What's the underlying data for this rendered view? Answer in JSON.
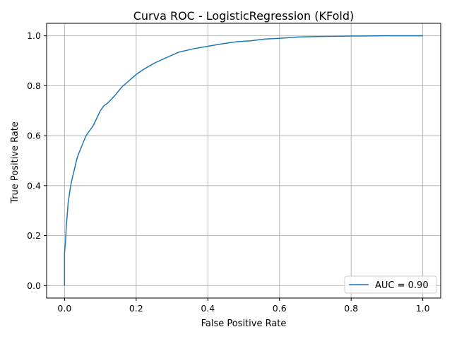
{
  "chart_data": {
    "type": "line",
    "title": "Curva ROC - LogisticRegression (KFold)",
    "xlabel": "False Positive Rate",
    "ylabel": "True Positive Rate",
    "xlim": [
      -0.05,
      1.05
    ],
    "ylim": [
      -0.05,
      1.05
    ],
    "grid": true,
    "legend": "lower-right",
    "x_ticks": [
      "0.0",
      "0.2",
      "0.4",
      "0.6",
      "0.8",
      "1.0"
    ],
    "y_ticks": [
      "0.0",
      "0.2",
      "0.4",
      "0.6",
      "0.8",
      "1.0"
    ],
    "series": [
      {
        "name": "AUC = 0.90",
        "color": "#1f77b4",
        "x": [
          0.0,
          0.0,
          0.003,
          0.005,
          0.008,
          0.01,
          0.013,
          0.016,
          0.02,
          0.025,
          0.03,
          0.035,
          0.04,
          0.05,
          0.06,
          0.07,
          0.08,
          0.09,
          0.1,
          0.11,
          0.12,
          0.14,
          0.16,
          0.18,
          0.2,
          0.22,
          0.25,
          0.28,
          0.32,
          0.36,
          0.4,
          0.44,
          0.48,
          0.52,
          0.56,
          0.6,
          0.65,
          0.7,
          0.8,
          0.9,
          1.0
        ],
        "y": [
          0.0,
          0.13,
          0.18,
          0.24,
          0.29,
          0.33,
          0.36,
          0.39,
          0.42,
          0.45,
          0.48,
          0.51,
          0.53,
          0.565,
          0.6,
          0.62,
          0.64,
          0.67,
          0.7,
          0.72,
          0.73,
          0.76,
          0.795,
          0.82,
          0.845,
          0.865,
          0.89,
          0.91,
          0.935,
          0.948,
          0.958,
          0.968,
          0.976,
          0.98,
          0.987,
          0.99,
          0.995,
          0.997,
          0.999,
          1.0,
          1.0
        ]
      }
    ]
  }
}
